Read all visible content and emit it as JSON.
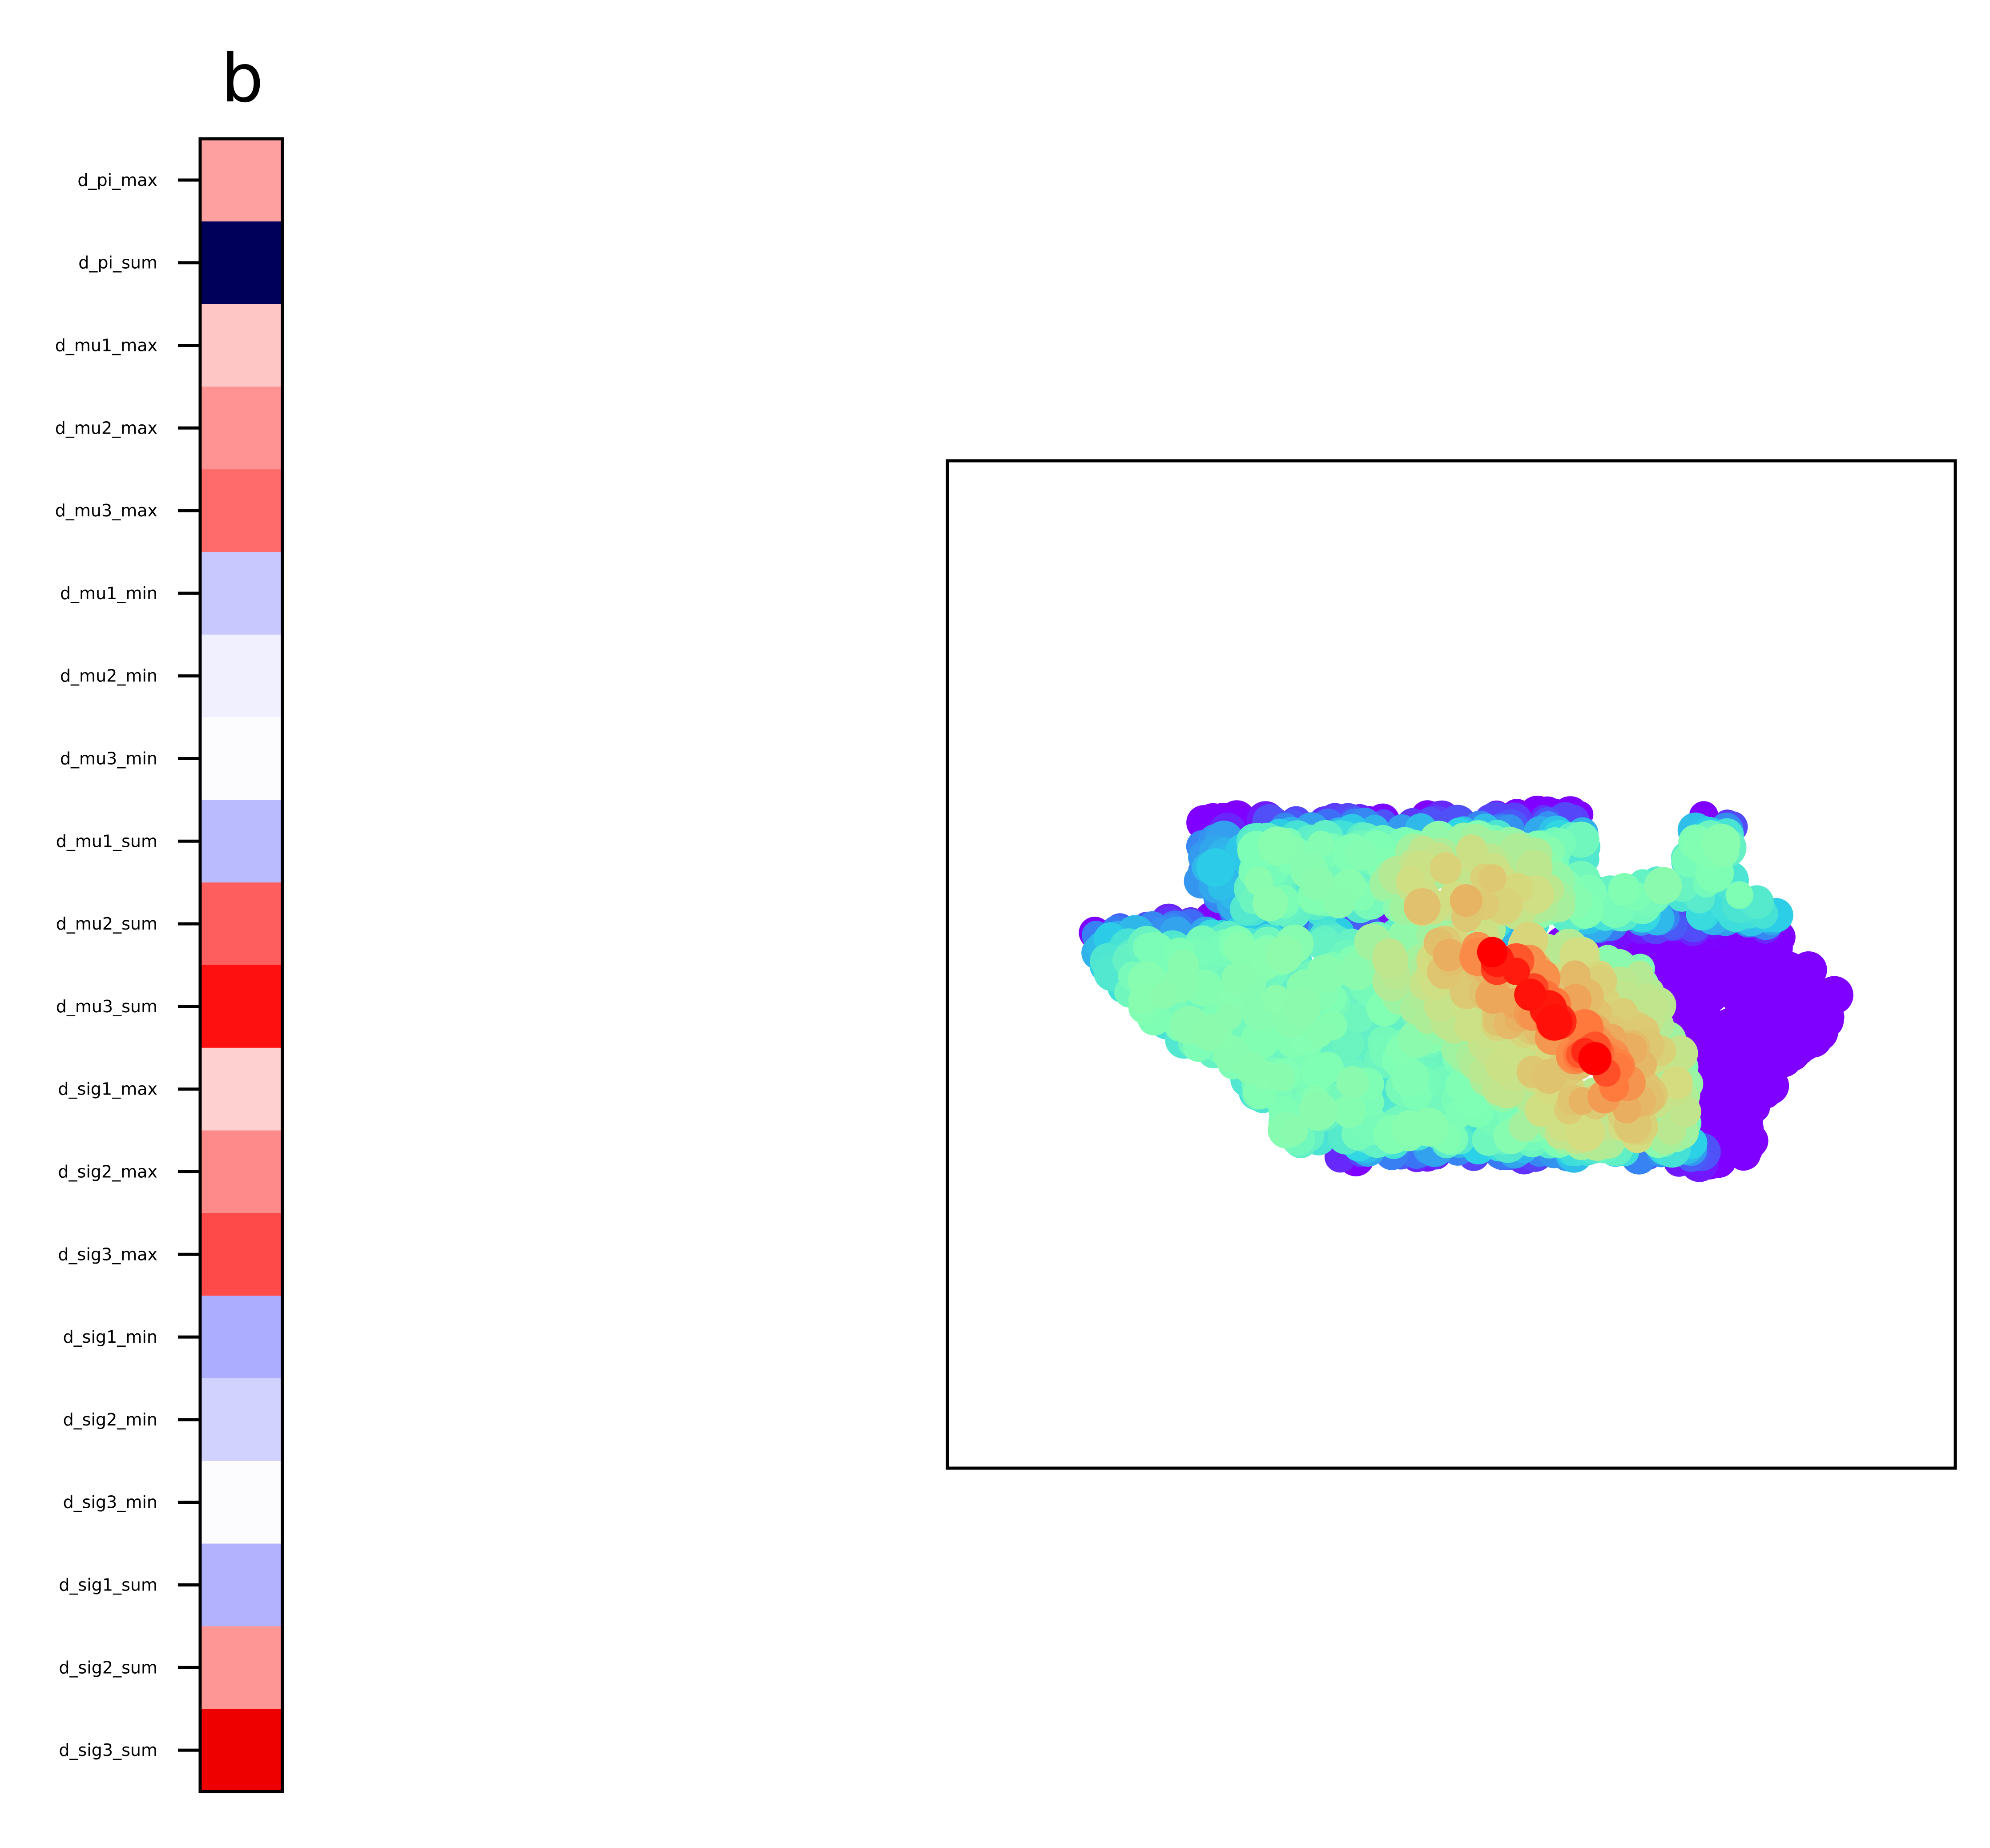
{
  "chart_data": [
    {
      "type": "heatmap",
      "title": "b",
      "rows": [
        {
          "label": "d_pi_max",
          "color": "#ffa0a0"
        },
        {
          "label": "d_pi_sum",
          "color": "#00005a"
        },
        {
          "label": "d_mu1_max",
          "color": "#ffc6c6"
        },
        {
          "label": "d_mu2_max",
          "color": "#ff9393"
        },
        {
          "label": "d_mu3_max",
          "color": "#ff6b6b"
        },
        {
          "label": "d_mu1_min",
          "color": "#c8c8ff"
        },
        {
          "label": "d_mu2_min",
          "color": "#f0f0ff"
        },
        {
          "label": "d_mu3_min",
          "color": "#fcfcff"
        },
        {
          "label": "d_mu1_sum",
          "color": "#babaff"
        },
        {
          "label": "d_mu2_sum",
          "color": "#ff5e5e"
        },
        {
          "label": "d_mu3_sum",
          "color": "#ff1010"
        },
        {
          "label": "d_sig1_max",
          "color": "#ffd0d0"
        },
        {
          "label": "d_sig2_max",
          "color": "#ff8a8a"
        },
        {
          "label": "d_sig3_max",
          "color": "#ff4a4a"
        },
        {
          "label": "d_sig1_min",
          "color": "#adadff"
        },
        {
          "label": "d_sig2_min",
          "color": "#d2d2ff"
        },
        {
          "label": "d_sig3_min",
          "color": "#fcfcff"
        },
        {
          "label": "d_sig1_sum",
          "color": "#b2b2ff"
        },
        {
          "label": "d_sig2_sum",
          "color": "#ff9696"
        },
        {
          "label": "d_sig3_sum",
          "color": "#ee0000"
        }
      ],
      "grid": false
    },
    {
      "type": "scatter",
      "title": "",
      "xlabel": "",
      "ylabel": "",
      "axis_ticks": false,
      "colormap": "rainbow",
      "colormap_colors": [
        "#7f00ff",
        "#3a73f5",
        "#2bd4e6",
        "#80ffb4",
        "#d4dd80",
        "#ff7f40",
        "#ff0000"
      ],
      "description_of_marks": "dense cluster of overlapping disks colored by a rainbow colormap, values highest along a diagonal ridge"
    }
  ]
}
